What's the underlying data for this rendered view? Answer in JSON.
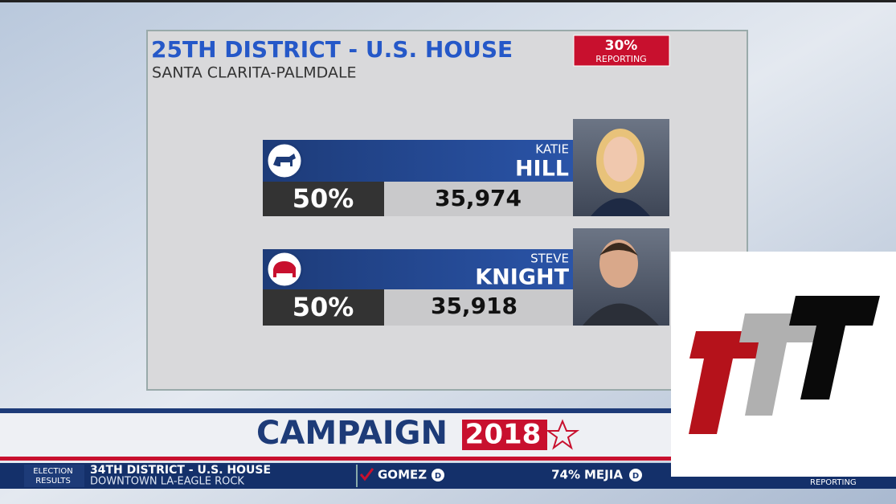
{
  "header": {
    "title": "25TH DISTRICT - U.S. HOUSE",
    "subtitle": "SANTA CLARITA-PALMDALE",
    "reporting_percent": "30%",
    "reporting_label": "REPORTING"
  },
  "candidates": [
    {
      "first_name": "KATIE",
      "last_name": "HILL",
      "percent": "50%",
      "votes": "35,974"
    },
    {
      "first_name": "STEVE",
      "last_name": "KNIGHT",
      "percent": "50%",
      "votes": "35,918"
    }
  ],
  "banner": {
    "word": "CAMPAIGN",
    "year": "2018"
  },
  "ticker": {
    "tag_top": "ELECTION",
    "tag_bottom": "RESULTS",
    "race": "34TH DISTRICT - U.S. HOUSE",
    "area": "DOWNTOWN LA-EAGLE ROCK",
    "candidate_1": "GOMEZ",
    "party_1": "D",
    "percent_2": "74%",
    "candidate_2": "MEJIA",
    "party_2": "D",
    "reporting_label": "REPORTING"
  }
}
